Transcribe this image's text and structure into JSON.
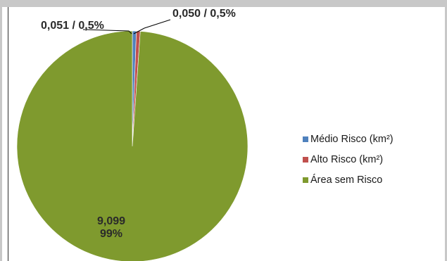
{
  "chart_data": {
    "type": "pie",
    "categories": [
      "Médio Risco (km²)",
      "Alto Risco (km²)",
      "Área sem Risco"
    ],
    "values": [
      0.051,
      0.05,
      9.099
    ],
    "percent_labels": [
      "0,5%",
      "0,5%",
      "99%"
    ],
    "value_labels": [
      "0,051",
      "0,050",
      "9,099"
    ],
    "colors": [
      "#4f81bd",
      "#c0504d",
      "#7f9a2e"
    ],
    "data_labels": [
      {
        "text": "0,051 / 0,5%"
      },
      {
        "text": "0,050 / 0,5%"
      },
      {
        "line1": "9,099",
        "line2": "99%"
      }
    ],
    "legend_position": "right"
  }
}
